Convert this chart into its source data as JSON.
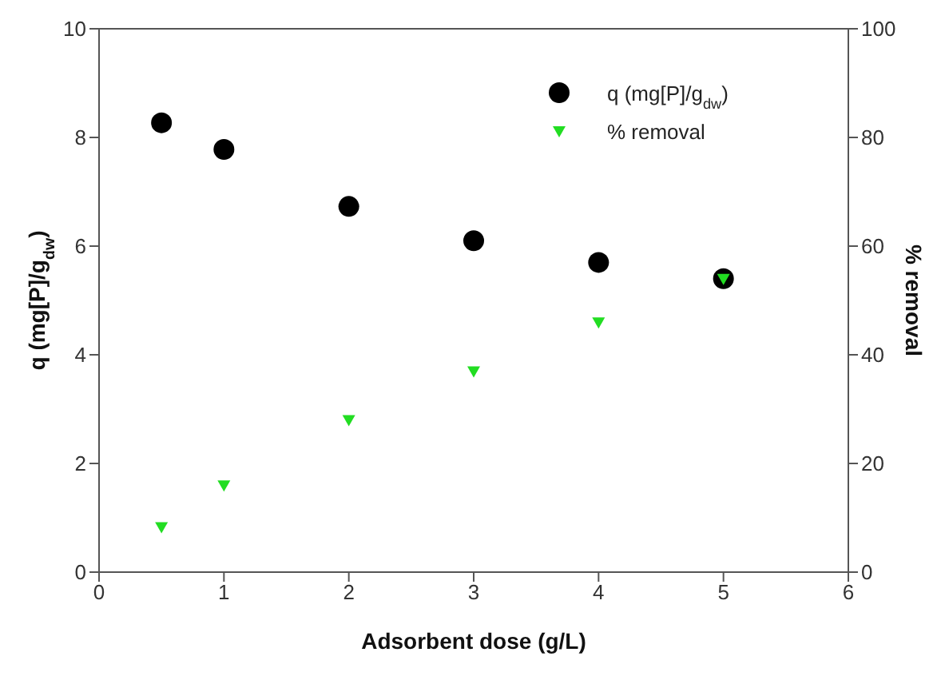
{
  "chart_data": {
    "type": "scatter",
    "xlabel": "Adsorbent dose (g/L)",
    "ylabel": "q (mg[P]/g$_{dw}$)",
    "y2label": "% removal",
    "x": [
      0.5,
      1,
      2,
      3,
      4,
      5
    ],
    "series": [
      {
        "name": "q (mg[P]/g$_{dw}$)",
        "color": "#000000",
        "marker": "circle",
        "values": [
          8.27,
          7.78,
          6.73,
          6.1,
          5.7,
          5.4
        ]
      },
      {
        "name": "% removal",
        "color": "#22dd22",
        "marker": "triangle",
        "axis": "y2",
        "values": [
          8.3,
          16,
          28,
          37,
          46,
          54
        ]
      }
    ],
    "xlim": [
      0,
      6
    ],
    "xticks": [
      0,
      1,
      2,
      3,
      4,
      5,
      6
    ],
    "ylim": [
      0,
      10
    ],
    "yticks": [
      0,
      2,
      4,
      6,
      8,
      10
    ],
    "y2lim": [
      0,
      100
    ],
    "y2ticks": [
      0,
      20,
      40,
      60,
      80,
      100
    ],
    "legend": "top right"
  }
}
